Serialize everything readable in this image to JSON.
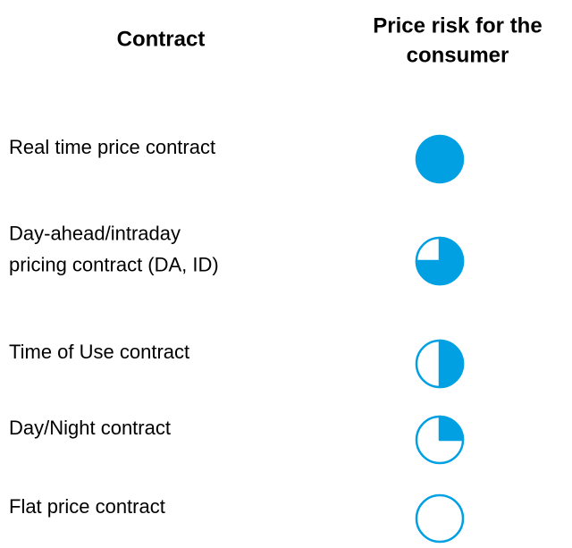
{
  "header": {
    "contract": "Contract",
    "risk": [
      "Price risk for the",
      "consumer"
    ]
  },
  "ball_color": "#00a0e3",
  "rows": [
    {
      "lines": [
        "Real time price contract"
      ],
      "risk": 1
    },
    {
      "lines": [
        "Day-ahead/intraday",
        "pricing contract (DA, ID)"
      ],
      "risk": 0.75
    },
    {
      "lines": [
        "Time of Use contract"
      ],
      "risk": 0.5
    },
    {
      "lines": [
        "Day/Night contract"
      ],
      "risk": 0.25
    },
    {
      "lines": [
        "Flat price contract"
      ],
      "risk": 0
    }
  ]
}
